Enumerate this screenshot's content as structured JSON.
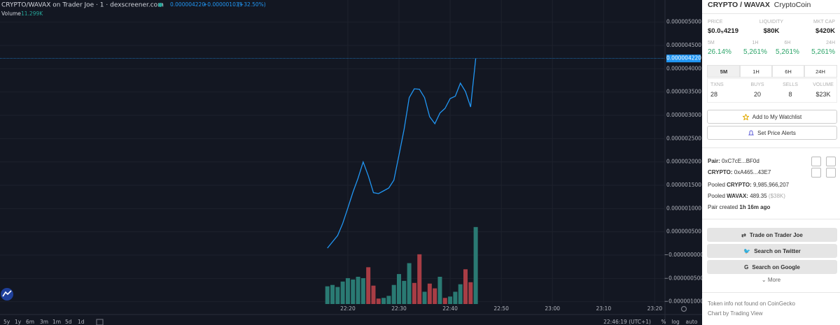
{
  "chart": {
    "header": {
      "title": "CRYPTO/WAVAX on Trader Joe · 1 · dexscreener.com",
      "price": "0.000004220",
      "change": "+0.000001035",
      "change_pct": "(+32.50%)",
      "volume_label": "Volume",
      "volume_value": "11.299K"
    },
    "xlim": [
      1272,
      1402
    ],
    "xticks": [
      {
        "value": 1340,
        "label": "22:20"
      },
      {
        "value": 1350,
        "label": "22:30"
      },
      {
        "value": 1360,
        "label": "22:40"
      },
      {
        "value": 1370,
        "label": "22:50"
      },
      {
        "value": 1380,
        "label": "23:00"
      },
      {
        "value": 1390,
        "label": "23:10"
      },
      {
        "value": 1400,
        "label": "23:20"
      }
    ],
    "ylim": [
      -1.05e-06,
      5.475e-06
    ],
    "yticks": [
      {
        "value": 5e-06,
        "label": "0.000005000"
      },
      {
        "value": 4.5e-06,
        "label": "0.000004500"
      },
      {
        "value": 4e-06,
        "label": "0.000004000"
      },
      {
        "value": 3.5e-06,
        "label": "0.000003500"
      },
      {
        "value": 3e-06,
        "label": "0.000003000"
      },
      {
        "value": 2.5e-06,
        "label": "0.000002500"
      },
      {
        "value": 2e-06,
        "label": "0.000002000"
      },
      {
        "value": 1.5e-06,
        "label": "0.000001500"
      },
      {
        "value": 1e-06,
        "label": "0.000001000"
      },
      {
        "value": 5e-07,
        "label": "0.000000500"
      },
      {
        "value": 0,
        "label": "−0.000000000"
      },
      {
        "value": -5e-07,
        "label": "−0.000000500"
      },
      {
        "value": -1e-06,
        "label": "−0.000001000"
      }
    ],
    "last_price": {
      "value": 4.22e-06,
      "label": "0.000004220"
    },
    "price": {
      "color": "#2196f3",
      "x": [
        1336,
        1338,
        1339,
        1340,
        1341,
        1342,
        1343,
        1344,
        1345,
        1346,
        1347,
        1348,
        1349,
        1350,
        1351,
        1352,
        1353,
        1354,
        1355,
        1356,
        1357,
        1358,
        1359,
        1360,
        1361,
        1362,
        1363,
        1364,
        1365
      ],
      "values": [
        1.5e-07,
        4.2e-07,
        6.8e-07,
        1.01e-06,
        1.35e-06,
        1.65e-06,
        2e-06,
        1.7e-06,
        1.34e-06,
        1.32e-06,
        1.38e-06,
        1.44e-06,
        1.61e-06,
        2.15e-06,
        2.7e-06,
        3.38e-06,
        3.57e-06,
        3.56e-06,
        3.38e-06,
        2.97e-06,
        2.82e-06,
        3.05e-06,
        3.15e-06,
        3.36e-06,
        3.41e-06,
        3.69e-06,
        3.51e-06,
        3.18e-06,
        4.22e-06
      ]
    },
    "volume": {
      "ylim": [
        0,
        12
      ],
      "x": [
        1336,
        1337,
        1338,
        1339,
        1340,
        1341,
        1342,
        1343,
        1344,
        1345,
        1346,
        1347,
        1348,
        1349,
        1350,
        1351,
        1352,
        1353,
        1354,
        1355,
        1356,
        1357,
        1358,
        1359,
        1360,
        1361,
        1362,
        1363,
        1364,
        1365
      ],
      "values": [
        2.6,
        2.8,
        2.5,
        3.3,
        3.8,
        3.6,
        4.0,
        3.8,
        5.4,
        2.7,
        0.8,
        0.9,
        1.2,
        2.8,
        4.4,
        3.4,
        6.0,
        3.1,
        7.3,
        1.8,
        3.0,
        2.3,
        4.0,
        0.9,
        1.1,
        1.8,
        2.9,
        5.1,
        3.2,
        11.299
      ],
      "colors": [
        "#2a7a73",
        "#2a7a73",
        "#2a7a73",
        "#2a7a73",
        "#2a7a73",
        "#2a7a73",
        "#2a7a73",
        "#2a7a73",
        "#a83d45",
        "#a83d45",
        "#a83d45",
        "#2a7a73",
        "#2a7a73",
        "#2a7a73",
        "#2a7a73",
        "#2a7a73",
        "#2a7a73",
        "#a83d45",
        "#a83d45",
        "#2a7a73",
        "#a83d45",
        "#a83d45",
        "#2a7a73",
        "#a83d45",
        "#2a7a73",
        "#2a7a73",
        "#2a7a73",
        "#a83d45",
        "#a83d45",
        "#2a7a73"
      ]
    },
    "ranges": [
      "5y",
      "1y",
      "6m",
      "3m",
      "1m",
      "5d",
      "1d"
    ],
    "clock": "22:46:19 (UTC+1)",
    "scale_options": [
      "%",
      "log",
      "auto"
    ]
  },
  "panel": {
    "title": "CRYPTO / WAVAX",
    "subtitle": "CryptoCoin",
    "stats": [
      {
        "label": "PRICE",
        "value": "$0.0₅4219"
      },
      {
        "label": "LIQUIDITY",
        "value": "$80K"
      },
      {
        "label": "MKT CAP",
        "value": "$420K"
      }
    ],
    "changes": [
      {
        "label": "5M",
        "value": "26.14%"
      },
      {
        "label": "1H",
        "value": "5,261%"
      },
      {
        "label": "6H",
        "value": "5,261%"
      },
      {
        "label": "24H",
        "value": "5,261%"
      }
    ],
    "tabs": [
      "5M",
      "1H",
      "6H",
      "24H"
    ],
    "txns": [
      {
        "label": "TXNS",
        "value": "28"
      },
      {
        "label": "BUYS",
        "value": "20"
      },
      {
        "label": "SELLS",
        "value": "8"
      },
      {
        "label": "VOLUME",
        "value": "$23K"
      }
    ],
    "watchlist": "Add to My Watchlist",
    "alerts": "Set Price Alerts",
    "pair": {
      "label": "Pair:",
      "value": "0xC7cE...BF0d"
    },
    "token": {
      "label": "CRYPTO:",
      "value": "0xA465...43E7"
    },
    "pooled_token": {
      "prefix": "Pooled",
      "token": "CRYPTO:",
      "value": "9,985,966,207"
    },
    "pooled_base": {
      "prefix": "Pooled",
      "token": "WAVAX:",
      "value": "489.35",
      "usd": "($38K)"
    },
    "created": {
      "prefix": "Pair created",
      "value": "1h 16m ago"
    },
    "links": [
      "Trade on Trader Joe",
      "Search on Twitter",
      "Search on Google"
    ],
    "more": "More",
    "footer": [
      "Token info not found on CoinGecko",
      "Chart by Trading View"
    ]
  }
}
